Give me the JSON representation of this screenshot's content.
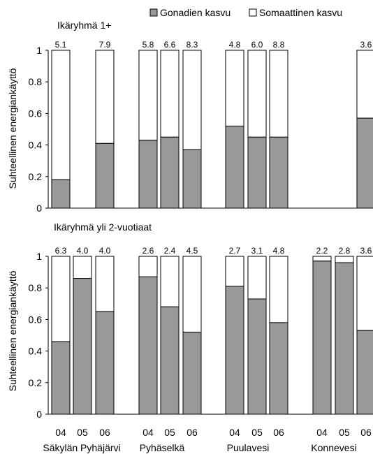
{
  "legend": {
    "gonad": "Gonadien kasvu",
    "somatic": "Somaattinen kasvu",
    "gonad_color": "#999999",
    "somatic_color": "#ffffff"
  },
  "chart_data": [
    {
      "type": "bar",
      "stacked": true,
      "title": "Ikäryhmä 1+",
      "ylabel": "Suhteellinen energiankäyttö",
      "ylim": [
        0,
        1
      ],
      "yticks": [
        "0",
        "0.2",
        "0.4",
        "0.6",
        "0.8",
        "1"
      ],
      "categories": [
        {
          "year": "04",
          "lake": "Säkylän Pyhäjärvi"
        },
        {
          "year": "05",
          "lake": "Säkylän Pyhäjärvi"
        },
        {
          "year": "06",
          "lake": "Säkylän Pyhäjärvi"
        },
        {
          "year": "04",
          "lake": "Pyhäselkä"
        },
        {
          "year": "05",
          "lake": "Pyhäselkä"
        },
        {
          "year": "06",
          "lake": "Pyhäselkä"
        },
        {
          "year": "04",
          "lake": "Puulavesi"
        },
        {
          "year": "05",
          "lake": "Puulavesi"
        },
        {
          "year": "06",
          "lake": "Puulavesi"
        },
        {
          "year": "04",
          "lake": "Konnevesi"
        },
        {
          "year": "05",
          "lake": "Konnevesi"
        },
        {
          "year": "06",
          "lake": "Konnevesi"
        }
      ],
      "series": [
        {
          "name": "Gonadien kasvu",
          "values": [
            0.18,
            null,
            0.41,
            0.43,
            0.45,
            0.37,
            0.52,
            0.45,
            0.45,
            null,
            null,
            0.57
          ]
        },
        {
          "name": "Somaattinen kasvu",
          "values": [
            0.82,
            null,
            0.59,
            0.57,
            0.55,
            0.63,
            0.48,
            0.55,
            0.55,
            null,
            null,
            0.43
          ]
        }
      ],
      "top_labels": [
        "5.1",
        "",
        "7.9",
        "5.8",
        "6.6",
        "8.3",
        "4.8",
        "6.0",
        "8.8",
        "",
        "",
        "3.6"
      ]
    },
    {
      "type": "bar",
      "stacked": true,
      "title": "Ikäryhmä yli 2-vuotiaat",
      "ylabel": "Suhteellinen energiankäyttö",
      "ylim": [
        0,
        1
      ],
      "yticks": [
        "0",
        "0.2",
        "0.4",
        "0.6",
        "0.8",
        "1"
      ],
      "categories": [
        {
          "year": "04",
          "lake": "Säkylän Pyhäjärvi"
        },
        {
          "year": "05",
          "lake": "Säkylän Pyhäjärvi"
        },
        {
          "year": "06",
          "lake": "Säkylän Pyhäjärvi"
        },
        {
          "year": "04",
          "lake": "Pyhäselkä"
        },
        {
          "year": "05",
          "lake": "Pyhäselkä"
        },
        {
          "year": "06",
          "lake": "Pyhäselkä"
        },
        {
          "year": "04",
          "lake": "Puulavesi"
        },
        {
          "year": "05",
          "lake": "Puulavesi"
        },
        {
          "year": "06",
          "lake": "Puulavesi"
        },
        {
          "year": "04",
          "lake": "Konnevesi"
        },
        {
          "year": "05",
          "lake": "Konnevesi"
        },
        {
          "year": "06",
          "lake": "Konnevesi"
        }
      ],
      "series": [
        {
          "name": "Gonadien kasvu",
          "values": [
            0.46,
            0.86,
            0.65,
            0.87,
            0.68,
            0.52,
            0.81,
            0.73,
            0.58,
            0.97,
            0.96,
            0.53
          ]
        },
        {
          "name": "Somaattinen kasvu",
          "values": [
            0.54,
            0.14,
            0.35,
            0.13,
            0.32,
            0.48,
            0.19,
            0.27,
            0.42,
            0.03,
            0.04,
            0.47
          ]
        }
      ],
      "top_labels": [
        "6.3",
        "4.0",
        "4.0",
        "2.6",
        "2.4",
        "4.5",
        "2.7",
        "3.1",
        "4.8",
        "2.2",
        "2.8",
        "3.6"
      ]
    }
  ],
  "x_axis": {
    "years": [
      "04",
      "05",
      "06",
      "04",
      "05",
      "06",
      "04",
      "05",
      "06",
      "04",
      "05",
      "06"
    ],
    "lakes": [
      "Säkylän Pyhäjärvi",
      "Pyhäselkä",
      "Puulavesi",
      "Konnevesi"
    ]
  }
}
